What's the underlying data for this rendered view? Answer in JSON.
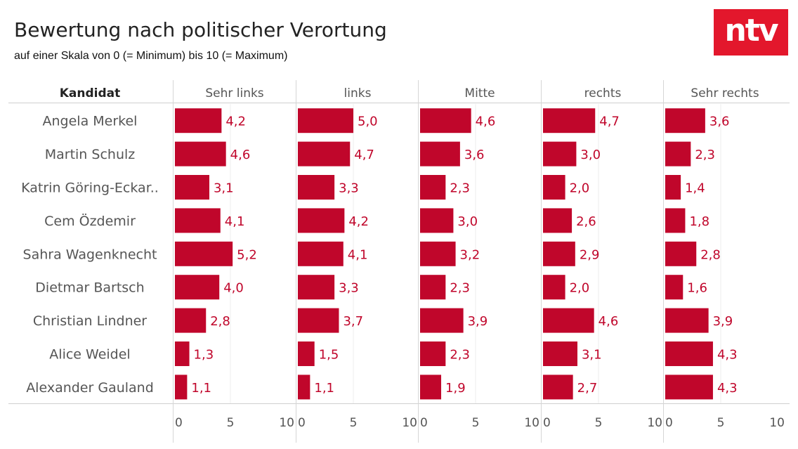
{
  "header": {
    "title": "Bewertung nach politischer Verortung",
    "subtitle": "auf einer Skala von 0 (= Minimum) bis 10 (= Maximum)"
  },
  "logo": {
    "text": "ntv",
    "color": "#e3172c"
  },
  "chart_data": {
    "type": "bar",
    "orientation": "horizontal",
    "row_header": "Kandidat",
    "categories": [
      "Angela Merkel",
      "Martin Schulz",
      "Katrin Göring-Eckar..",
      "Cem Özdemir",
      "Sahra Wagenknecht",
      "Dietmar Bartsch",
      "Christian Lindner",
      "Alice Weidel",
      "Alexander Gauland"
    ],
    "series": [
      {
        "name": "Sehr links",
        "values": [
          4.2,
          4.6,
          3.1,
          4.1,
          5.2,
          4.0,
          2.8,
          1.3,
          1.1
        ]
      },
      {
        "name": "links",
        "values": [
          5.0,
          4.7,
          3.3,
          4.2,
          4.1,
          3.3,
          3.7,
          1.5,
          1.1
        ]
      },
      {
        "name": "Mitte",
        "values": [
          4.6,
          3.6,
          2.3,
          3.0,
          3.2,
          2.3,
          3.9,
          2.3,
          1.9
        ]
      },
      {
        "name": "rechts",
        "values": [
          4.7,
          3.0,
          2.0,
          2.6,
          2.9,
          2.0,
          4.6,
          3.1,
          2.7
        ]
      },
      {
        "name": "Sehr rechts",
        "values": [
          3.6,
          2.3,
          1.4,
          1.8,
          2.8,
          1.6,
          3.9,
          4.3,
          4.3
        ]
      }
    ],
    "xlim": [
      0,
      10
    ],
    "x_ticks": [
      "0",
      "5",
      "10"
    ],
    "bar_color": "#c0062b",
    "label_color": "#c0062b",
    "decimal_separator": ","
  }
}
